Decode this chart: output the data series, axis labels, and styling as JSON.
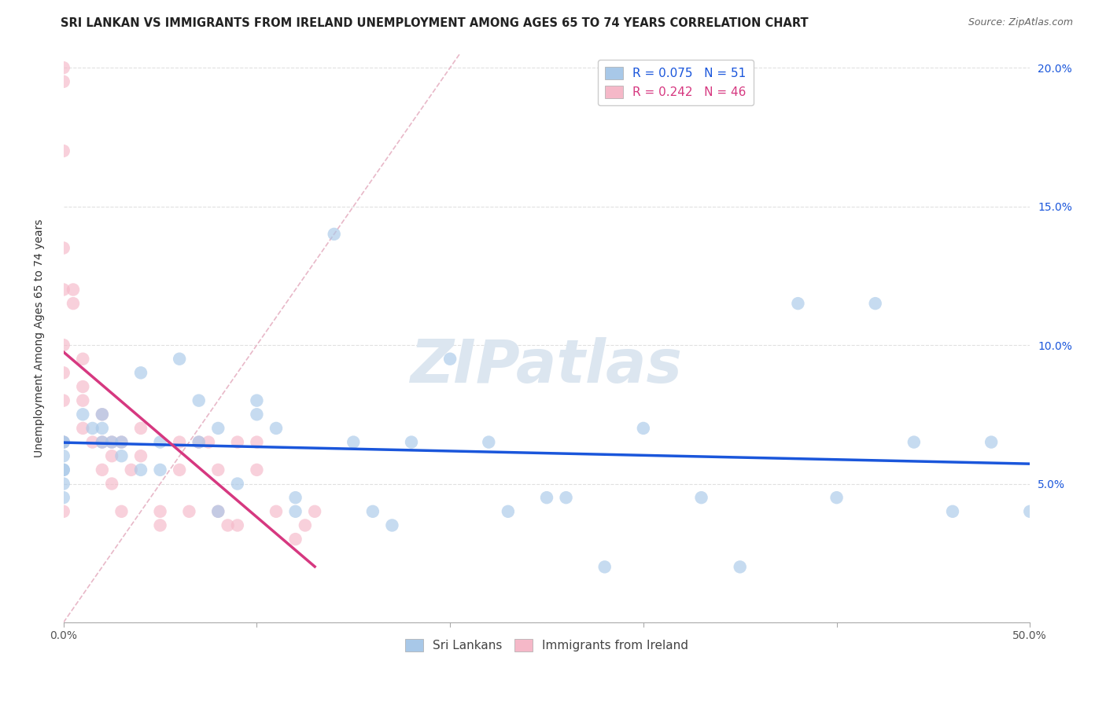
{
  "title": "SRI LANKAN VS IMMIGRANTS FROM IRELAND UNEMPLOYMENT AMONG AGES 65 TO 74 YEARS CORRELATION CHART",
  "source": "Source: ZipAtlas.com",
  "ylabel": "Unemployment Among Ages 65 to 74 years",
  "xlim": [
    0,
    0.5
  ],
  "ylim": [
    0,
    0.205
  ],
  "xticks": [
    0.0,
    0.1,
    0.2,
    0.3,
    0.4,
    0.5
  ],
  "yticks": [
    0.0,
    0.05,
    0.1,
    0.15,
    0.2
  ],
  "xtick_labels_left": [
    "0.0%",
    "",
    "",
    "",
    "",
    ""
  ],
  "xtick_labels_right": [
    "",
    "",
    "",
    "",
    "",
    "50.0%"
  ],
  "ytick_labels_right": [
    "",
    "5.0%",
    "10.0%",
    "15.0%",
    "20.0%"
  ],
  "sri_lankans_x": [
    0.0,
    0.0,
    0.0,
    0.0,
    0.0,
    0.0,
    0.0,
    0.01,
    0.015,
    0.02,
    0.02,
    0.02,
    0.025,
    0.03,
    0.03,
    0.04,
    0.04,
    0.05,
    0.05,
    0.06,
    0.07,
    0.07,
    0.08,
    0.08,
    0.09,
    0.1,
    0.1,
    0.11,
    0.12,
    0.12,
    0.14,
    0.15,
    0.16,
    0.17,
    0.18,
    0.2,
    0.22,
    0.23,
    0.25,
    0.26,
    0.28,
    0.3,
    0.33,
    0.35,
    0.38,
    0.4,
    0.42,
    0.44,
    0.46,
    0.48,
    0.5
  ],
  "sri_lankans_y": [
    0.065,
    0.065,
    0.06,
    0.055,
    0.055,
    0.05,
    0.045,
    0.075,
    0.07,
    0.075,
    0.07,
    0.065,
    0.065,
    0.065,
    0.06,
    0.09,
    0.055,
    0.065,
    0.055,
    0.095,
    0.08,
    0.065,
    0.07,
    0.04,
    0.05,
    0.08,
    0.075,
    0.07,
    0.045,
    0.04,
    0.14,
    0.065,
    0.04,
    0.035,
    0.065,
    0.095,
    0.065,
    0.04,
    0.045,
    0.045,
    0.02,
    0.07,
    0.045,
    0.02,
    0.115,
    0.045,
    0.115,
    0.065,
    0.04,
    0.065,
    0.04
  ],
  "ireland_x": [
    0.0,
    0.0,
    0.0,
    0.0,
    0.0,
    0.0,
    0.0,
    0.0,
    0.0,
    0.0,
    0.005,
    0.005,
    0.01,
    0.01,
    0.01,
    0.01,
    0.015,
    0.02,
    0.02,
    0.02,
    0.025,
    0.025,
    0.025,
    0.03,
    0.03,
    0.035,
    0.04,
    0.04,
    0.05,
    0.05,
    0.06,
    0.06,
    0.065,
    0.07,
    0.075,
    0.08,
    0.08,
    0.085,
    0.09,
    0.09,
    0.1,
    0.1,
    0.11,
    0.12,
    0.125,
    0.13
  ],
  "ireland_y": [
    0.2,
    0.195,
    0.17,
    0.135,
    0.12,
    0.1,
    0.09,
    0.08,
    0.065,
    0.04,
    0.12,
    0.115,
    0.095,
    0.085,
    0.08,
    0.07,
    0.065,
    0.075,
    0.065,
    0.055,
    0.065,
    0.06,
    0.05,
    0.065,
    0.04,
    0.055,
    0.07,
    0.06,
    0.04,
    0.035,
    0.065,
    0.055,
    0.04,
    0.065,
    0.065,
    0.055,
    0.04,
    0.035,
    0.065,
    0.035,
    0.065,
    0.055,
    0.04,
    0.03,
    0.035,
    0.04
  ],
  "sri_r": 0.075,
  "sri_n": 51,
  "ireland_r": 0.242,
  "ireland_n": 46,
  "blue_color": "#a8c8e8",
  "pink_color": "#f5b8c8",
  "blue_line_color": "#1a56db",
  "pink_line_color": "#d63880",
  "ref_line_color": "#e8b8c8",
  "background_color": "#ffffff",
  "grid_color": "#e0e0e0",
  "watermark_color": "#dce6f0",
  "title_fontsize": 10.5,
  "axis_label_fontsize": 10,
  "tick_fontsize": 10,
  "legend_fontsize": 11,
  "source_fontsize": 9
}
